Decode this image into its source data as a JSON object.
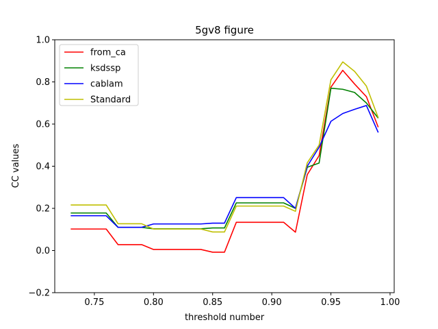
{
  "chart_data": {
    "type": "line",
    "title": "5gv8 figure",
    "xlabel": "threshold number",
    "ylabel": "CC values",
    "xlim": [
      0.7165,
      1.0035
    ],
    "ylim": [
      -0.2,
      1.0
    ],
    "xticks": [
      0.75,
      0.8,
      0.85,
      0.9,
      0.95,
      1.0
    ],
    "xtick_labels": [
      "0.75",
      "0.80",
      "0.85",
      "0.90",
      "0.95",
      "1.00"
    ],
    "yticks": [
      -0.2,
      0.0,
      0.2,
      0.4,
      0.6,
      0.8,
      1.0
    ],
    "ytick_labels": [
      "−0.2",
      "0.0",
      "0.2",
      "0.4",
      "0.6",
      "0.8",
      "1.0"
    ],
    "grid": false,
    "legend_position": "top-left",
    "x": [
      0.73,
      0.74,
      0.75,
      0.76,
      0.77,
      0.78,
      0.79,
      0.8,
      0.81,
      0.82,
      0.83,
      0.84,
      0.85,
      0.86,
      0.87,
      0.88,
      0.89,
      0.9,
      0.91,
      0.92,
      0.93,
      0.94,
      0.95,
      0.96,
      0.97,
      0.98,
      0.99
    ],
    "series": [
      {
        "name": "from_ca",
        "color": "#ff0000",
        "values": [
          0.102,
          0.102,
          0.102,
          0.102,
          0.028,
          0.028,
          0.028,
          0.005,
          0.005,
          0.005,
          0.005,
          0.005,
          -0.008,
          -0.008,
          0.134,
          0.134,
          0.134,
          0.134,
          0.134,
          0.087,
          0.36,
          0.45,
          0.775,
          0.855,
          0.79,
          0.73,
          0.585
        ]
      },
      {
        "name": "ksdssp",
        "color": "#008000",
        "values": [
          0.178,
          0.178,
          0.178,
          0.178,
          0.11,
          0.11,
          0.11,
          0.103,
          0.103,
          0.103,
          0.103,
          0.103,
          0.107,
          0.107,
          0.226,
          0.226,
          0.226,
          0.226,
          0.226,
          0.2,
          0.395,
          0.415,
          0.77,
          0.765,
          0.75,
          0.7,
          0.628
        ]
      },
      {
        "name": "cablam",
        "color": "#0000ff",
        "values": [
          0.165,
          0.165,
          0.165,
          0.165,
          0.11,
          0.11,
          0.11,
          0.126,
          0.126,
          0.126,
          0.126,
          0.126,
          0.13,
          0.13,
          0.251,
          0.251,
          0.251,
          0.251,
          0.251,
          0.2,
          0.4,
          0.49,
          0.613,
          0.65,
          0.67,
          0.688,
          0.56
        ]
      },
      {
        "name": "Standard",
        "color": "#bfbf00",
        "values": [
          0.216,
          0.216,
          0.216,
          0.216,
          0.127,
          0.127,
          0.127,
          0.102,
          0.102,
          0.102,
          0.102,
          0.102,
          0.088,
          0.088,
          0.211,
          0.211,
          0.211,
          0.211,
          0.211,
          0.186,
          0.416,
          0.5,
          0.81,
          0.895,
          0.85,
          0.78,
          0.63
        ]
      }
    ]
  }
}
